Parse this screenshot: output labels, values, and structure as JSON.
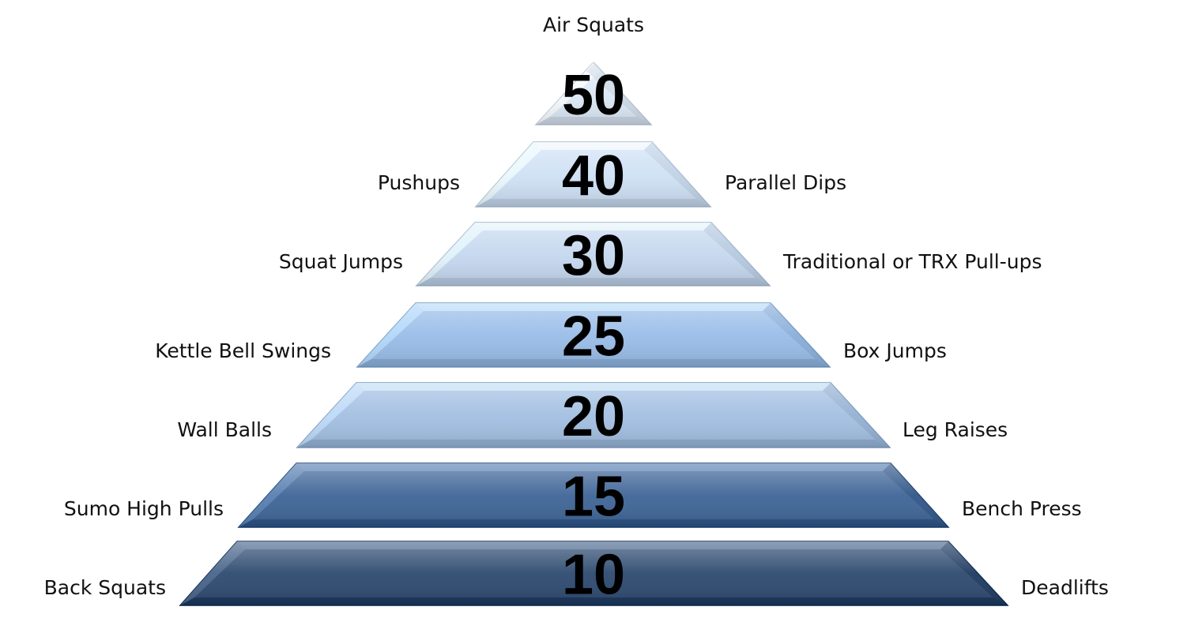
{
  "tiers": [
    {
      "count": "50",
      "left": "",
      "right": "",
      "top": "Air Squats",
      "color": "#dbe8f5"
    },
    {
      "count": "40",
      "left": "Pushups",
      "right": "Parallel Dips",
      "color": "#cfe1f5"
    },
    {
      "count": "30",
      "left": "Squat Jumps",
      "right": "Traditional or TRX Pull-ups",
      "color": "#c5d8ef"
    },
    {
      "count": "25",
      "left": "Kettle Bell Swings",
      "right": "Box Jumps",
      "color": "#99bde8"
    },
    {
      "count": "20",
      "left": "Wall Balls",
      "right": "Leg Raises",
      "color": "#a3bfe2"
    },
    {
      "count": "15",
      "left": "Sumo High Pulls",
      "right": "Bench Press",
      "color": "#3f6597"
    },
    {
      "count": "10",
      "left": "Back Squats",
      "right": "Deadlifts",
      "color": "#2e4a70"
    }
  ]
}
